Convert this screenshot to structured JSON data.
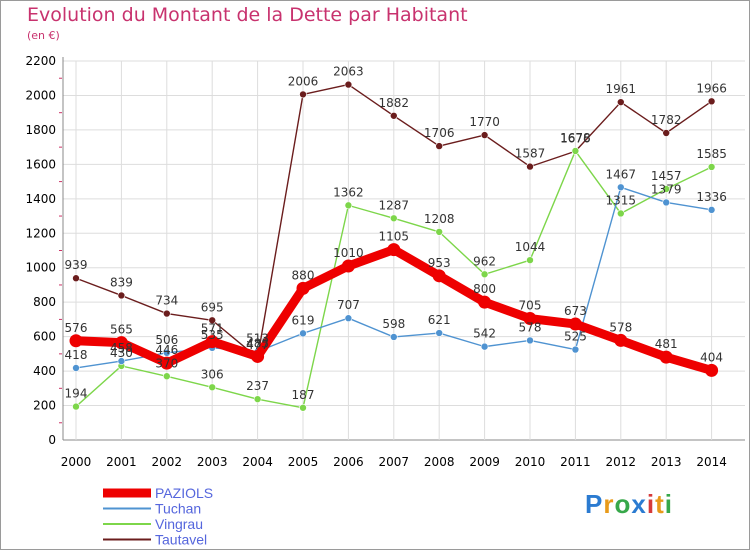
{
  "title": "Evolution du Montant de la Dette par Habitant",
  "unit_label": "(en €)",
  "brand": {
    "letters": [
      "P",
      "r",
      "o",
      "x",
      "i",
      "t",
      "i"
    ],
    "colors": [
      "#2b7bd1",
      "#e89a1a",
      "#37a84a",
      "#2b7bd1",
      "#d63a3a",
      "#e89a1a",
      "#37a84a"
    ]
  },
  "chart_data": {
    "type": "line",
    "title": "Evolution du Montant de la Dette par Habitant",
    "ylabel": "(en €)",
    "xlabel": "",
    "x": [
      "2000",
      "2001",
      "2002",
      "2003",
      "2004",
      "2005",
      "2006",
      "2007",
      "2008",
      "2009",
      "2010",
      "2011",
      "2012",
      "2013",
      "2014"
    ],
    "ylim": [
      0,
      2200
    ],
    "yticks": [
      0,
      200,
      400,
      600,
      800,
      1000,
      1200,
      1400,
      1600,
      1800,
      2000,
      2200
    ],
    "grid": true,
    "legend_position": "bottom-left",
    "series": [
      {
        "name": "PAZIOLS",
        "color": "#ee0000",
        "values": [
          576,
          565,
          446,
          571,
          485,
          880,
          1010,
          1105,
          953,
          800,
          705,
          673,
          578,
          481,
          404
        ]
      },
      {
        "name": "Tuchan",
        "color": "#4f93d1",
        "values": [
          418,
          458,
          506,
          535,
          513,
          619,
          707,
          598,
          621,
          542,
          578,
          525,
          1467,
          1379,
          1336
        ]
      },
      {
        "name": "Vingrau",
        "color": "#7dd64a",
        "values": [
          194,
          430,
          370,
          306,
          237,
          187,
          1362,
          1287,
          1208,
          962,
          1044,
          1678,
          1315,
          1457,
          1585
        ]
      },
      {
        "name": "Tautavel",
        "color": "#6b1d1d",
        "values": [
          939,
          839,
          734,
          695,
          477,
          2006,
          2063,
          1882,
          1706,
          1770,
          1587,
          1676,
          1961,
          1782,
          1966
        ]
      }
    ]
  }
}
